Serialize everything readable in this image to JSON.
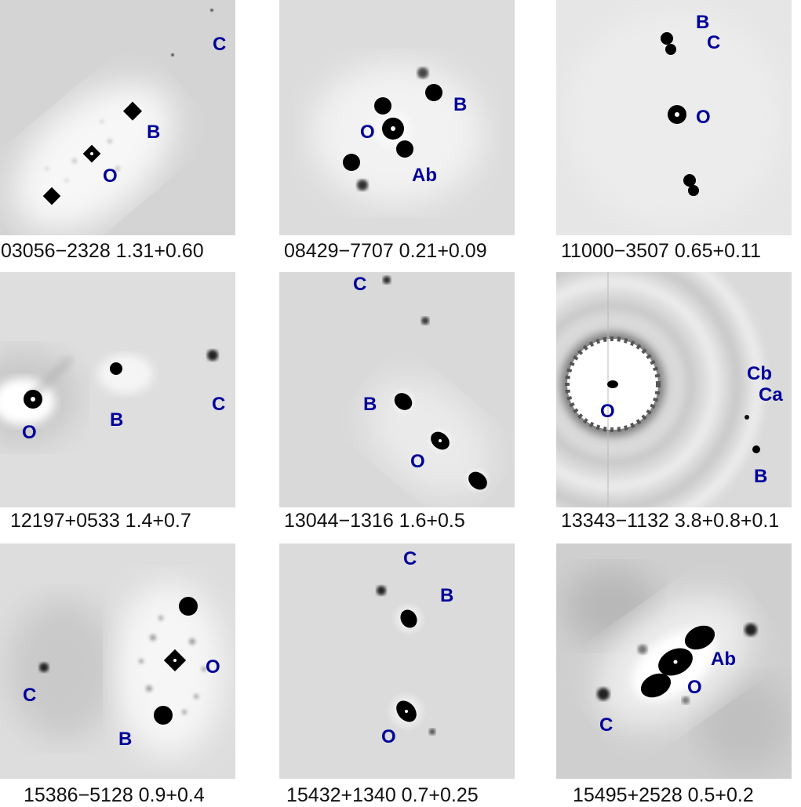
{
  "panels": [
    {
      "caption": "03056−2328 1.31+0.60",
      "labels": [
        "C",
        "B",
        "O"
      ]
    },
    {
      "caption": "08429−7707 0.21+0.09",
      "labels": [
        "B",
        "O",
        "Ab"
      ]
    },
    {
      "caption": "11000−3507 0.65+0.11",
      "labels": [
        "B",
        "C",
        "O"
      ]
    },
    {
      "caption": "12197+0533 1.4+0.7",
      "labels": [
        "C",
        "B",
        "O"
      ]
    },
    {
      "caption": "13044−1316 1.6+0.5",
      "labels": [
        "C",
        "B",
        "O"
      ]
    },
    {
      "caption": "13343−1132 3.8+0.8+0.1",
      "labels": [
        "Cb",
        "Ca",
        "O",
        "B"
      ]
    },
    {
      "caption": "15386−5128 0.9+0.4",
      "labels": [
        "O",
        "C",
        "B"
      ]
    },
    {
      "caption": "15432+1340 0.7+0.25",
      "labels": [
        "C",
        "B",
        "O"
      ]
    },
    {
      "caption": "15495+2528 0.5+0.2",
      "labels": [
        "Ab",
        "O",
        "C"
      ]
    }
  ],
  "colors": {
    "label": "#00009a",
    "background_gray": "#d9d9d9",
    "star": "#000000"
  }
}
